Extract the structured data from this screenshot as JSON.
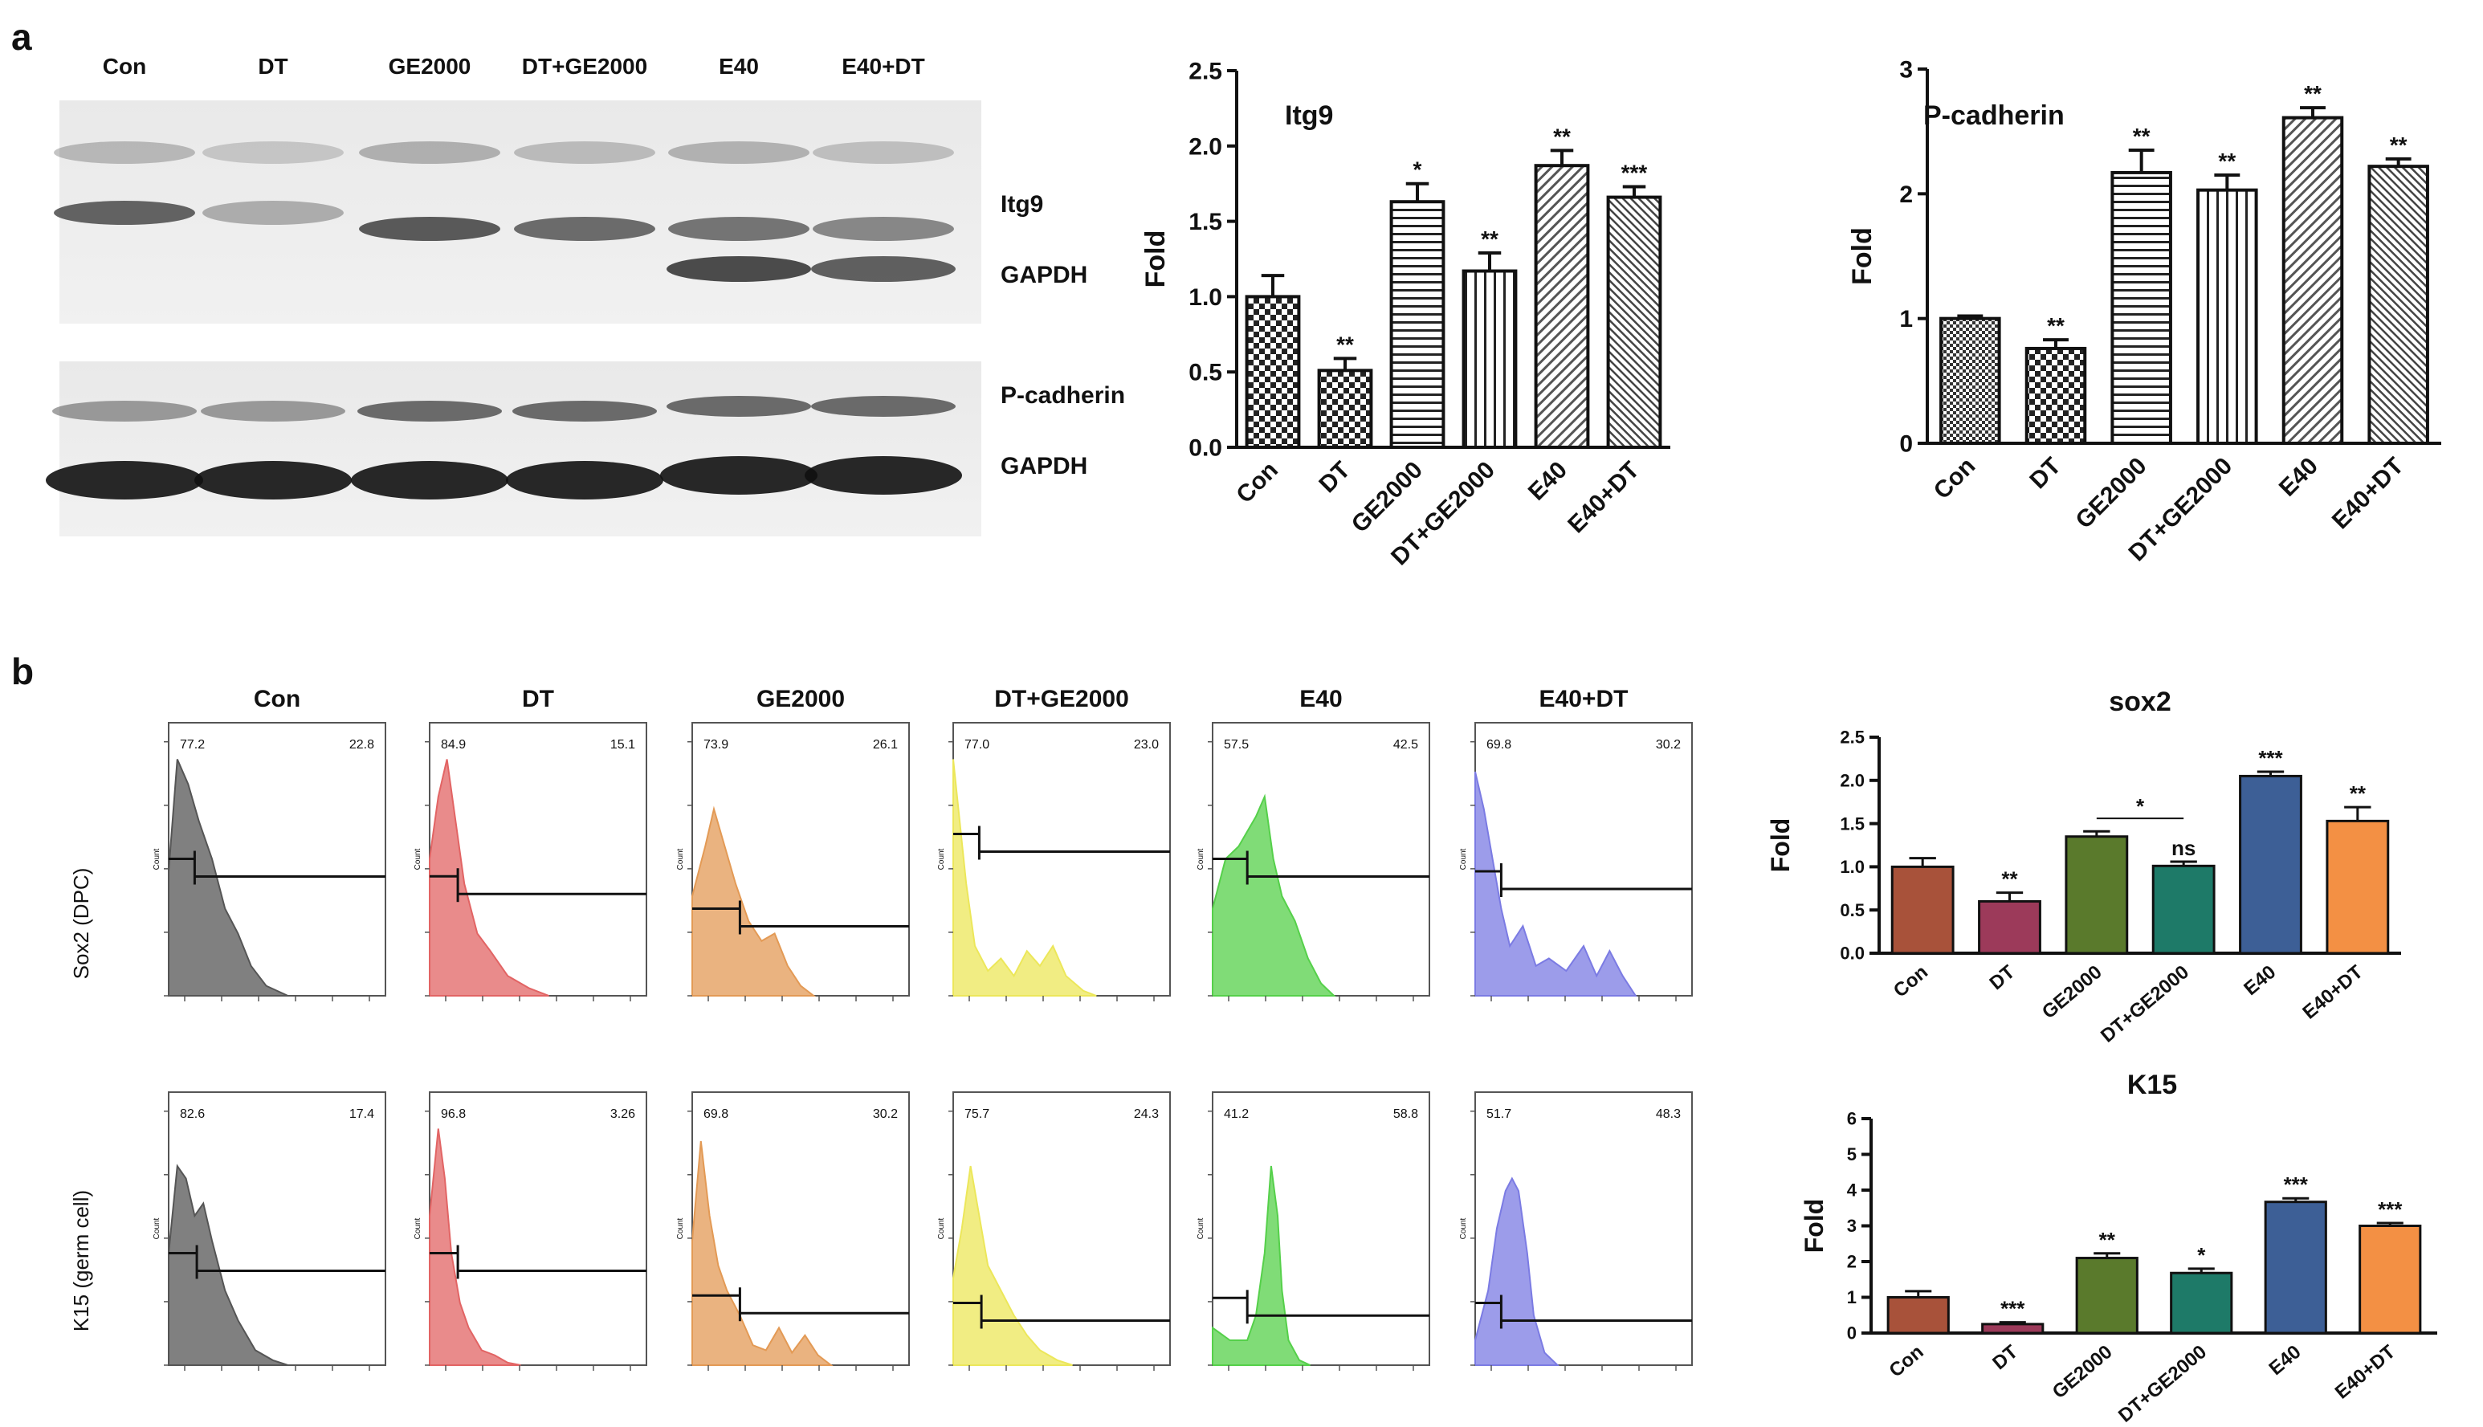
{
  "panels": {
    "a": "a",
    "b": "b"
  },
  "western_blot": {
    "lanes": [
      "Con",
      "DT",
      "GE2000",
      "DT+GE2000",
      "E40",
      "E40+DT"
    ],
    "blot1_labels": [
      "Itg9",
      "GAPDH"
    ],
    "blot2_labels": [
      "P-cadherin",
      "GAPDH"
    ]
  },
  "flow": {
    "conditions": [
      "Con",
      "DT",
      "GE2000",
      "DT+GE2000",
      "E40",
      "E40+DT"
    ],
    "colors": [
      "#555555",
      "#e26464",
      "#e39a55",
      "#ece75a",
      "#55d04a",
      "#7b7be3"
    ],
    "y_axis_label": "Count",
    "rows": [
      {
        "label": "Sox2 (DPC)",
        "gates": [
          {
            "left": "77.2",
            "right": "22.8"
          },
          {
            "left": "84.9",
            "right": "15.1"
          },
          {
            "left": "73.9",
            "right": "26.1"
          },
          {
            "left": "77.0",
            "right": "23.0"
          },
          {
            "left": "57.5",
            "right": "42.5"
          },
          {
            "left": "69.8",
            "right": "30.2"
          }
        ]
      },
      {
        "label": "K15 (germ cell)",
        "gates": [
          {
            "left": "82.6",
            "right": "17.4"
          },
          {
            "left": "96.8",
            "right": "3.26"
          },
          {
            "left": "69.8",
            "right": "30.2"
          },
          {
            "left": "75.7",
            "right": "24.3"
          },
          {
            "left": "41.2",
            "right": "58.8"
          },
          {
            "left": "51.7",
            "right": "48.3"
          }
        ]
      }
    ]
  },
  "chart_data": [
    {
      "type": "bar",
      "title": "Itg9",
      "ylabel": "Fold",
      "categories": [
        "Con",
        "DT",
        "GE2000",
        "DT+GE2000",
        "E40",
        "E40+DT"
      ],
      "values": [
        1.0,
        0.51,
        1.63,
        1.17,
        1.87,
        1.66
      ],
      "errors": [
        0.14,
        0.08,
        0.12,
        0.12,
        0.1,
        0.07
      ],
      "significance": [
        "",
        "**",
        "*",
        "**",
        "**",
        "***"
      ],
      "ylim": [
        0,
        2.5
      ],
      "yticks": [
        "0.0",
        "0.5",
        "1.0",
        "1.5",
        "2.0",
        "2.5"
      ]
    },
    {
      "type": "bar",
      "title": "P-cadherin",
      "ylabel": "Fold",
      "categories": [
        "Con",
        "DT",
        "GE2000",
        "DT+GE2000",
        "E40",
        "E40+DT"
      ],
      "values": [
        1.0,
        0.76,
        2.17,
        2.03,
        2.61,
        2.22
      ],
      "errors": [
        0.02,
        0.07,
        0.18,
        0.12,
        0.08,
        0.06
      ],
      "significance": [
        "",
        "**",
        "**",
        "**",
        "**",
        "**"
      ],
      "ylim": [
        0,
        3
      ],
      "yticks": [
        "0",
        "1",
        "2",
        "3"
      ]
    },
    {
      "type": "bar",
      "title": "sox2",
      "ylabel": "Fold",
      "categories": [
        "Con",
        "DT",
        "GE2000",
        "DT+GE2000",
        "E40",
        "E40+DT"
      ],
      "values": [
        1.0,
        0.6,
        1.35,
        1.01,
        2.05,
        1.53
      ],
      "errors": [
        0.1,
        0.1,
        0.06,
        0.05,
        0.05,
        0.16
      ],
      "significance": [
        "",
        "**",
        "",
        "ns",
        "***",
        "**"
      ],
      "comparison": {
        "from": 2,
        "to": 3,
        "label": "*"
      },
      "colors": [
        "#a8523a",
        "#9c3a5a",
        "#5a7a2c",
        "#1e7a68",
        "#3d5f96",
        "#f39044"
      ],
      "ylim": [
        0,
        2.5
      ],
      "yticks": [
        "0.0",
        "0.5",
        "1.0",
        "1.5",
        "2.0",
        "2.5"
      ]
    },
    {
      "type": "bar",
      "title": "K15",
      "ylabel": "Fold",
      "categories": [
        "Con",
        "DT",
        "GE2000",
        "DT+GE2000",
        "E40",
        "E40+DT"
      ],
      "values": [
        1.0,
        0.25,
        2.1,
        1.68,
        3.67,
        3.0
      ],
      "errors": [
        0.17,
        0.05,
        0.13,
        0.12,
        0.1,
        0.08
      ],
      "significance": [
        "",
        "***",
        "**",
        "*",
        "***",
        "***"
      ],
      "colors": [
        "#a8523a",
        "#9c3a5a",
        "#5a7a2c",
        "#1e7a68",
        "#3d5f96",
        "#f39044"
      ],
      "ylim": [
        0,
        6
      ],
      "yticks": [
        "0",
        "1",
        "2",
        "3",
        "4",
        "5",
        "6"
      ]
    }
  ]
}
